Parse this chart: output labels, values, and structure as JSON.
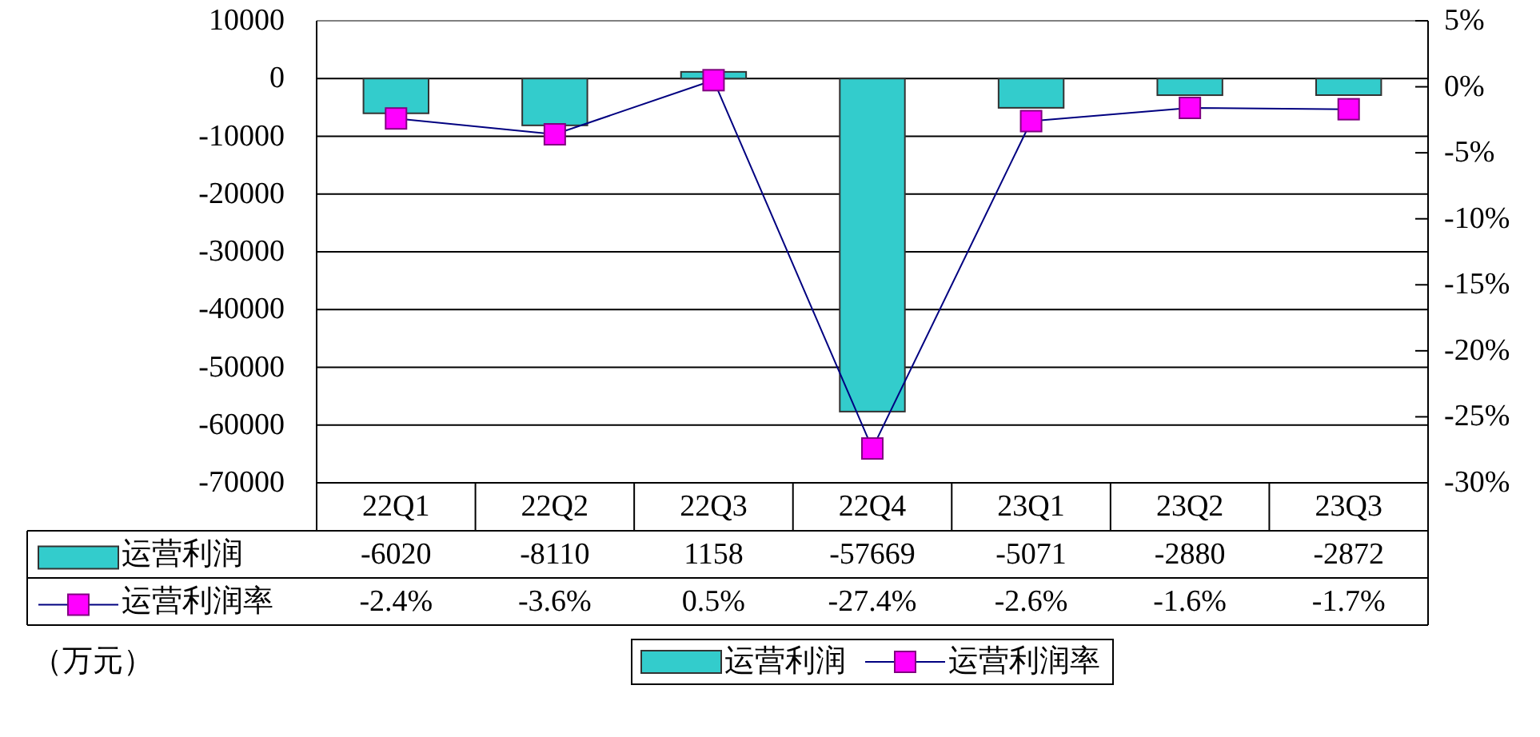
{
  "chart_data": {
    "type": "bar",
    "categories": [
      "22Q1",
      "22Q2",
      "22Q3",
      "22Q4",
      "23Q1",
      "23Q2",
      "23Q3"
    ],
    "series": [
      {
        "name": "运营利润",
        "color": "#33cccc",
        "values": [
          -6020,
          -8110,
          1158,
          -57669,
          -5071,
          -2880,
          -2872
        ],
        "value_labels": [
          "-6020",
          "-8110",
          "1158",
          "-57669",
          "-5071",
          "-2880",
          "-2872"
        ]
      },
      {
        "name": "运营利润率",
        "type": "line",
        "axis": "y2",
        "marker": "square",
        "color": "#ff00ff",
        "values": [
          -2.4,
          -3.6,
          0.5,
          -27.4,
          -2.6,
          -1.6,
          -1.7
        ],
        "value_labels": [
          "-2.4%",
          "-3.6%",
          "0.5%",
          "-27.4%",
          "-2.6%",
          "-1.6%",
          "-1.7%"
        ]
      }
    ],
    "ylim": [
      -70000,
      10000
    ],
    "yticks": [
      -70000,
      -60000,
      -50000,
      -40000,
      -30000,
      -20000,
      -10000,
      0,
      10000
    ],
    "y2lim": [
      -30,
      5
    ],
    "y2ticks": [
      {
        "value": -30,
        "label": "-30%"
      },
      {
        "value": -25,
        "label": "-25%"
      },
      {
        "value": -20,
        "label": "-20%"
      },
      {
        "value": -15,
        "label": "-15%"
      },
      {
        "value": -10,
        "label": "-10%"
      },
      {
        "value": -5,
        "label": "-5%"
      },
      {
        "value": 0,
        "label": "0%"
      },
      {
        "value": 5,
        "label": "5%"
      }
    ],
    "grid": "y",
    "legend": "bottom",
    "annotations": [
      "（万元）"
    ]
  }
}
